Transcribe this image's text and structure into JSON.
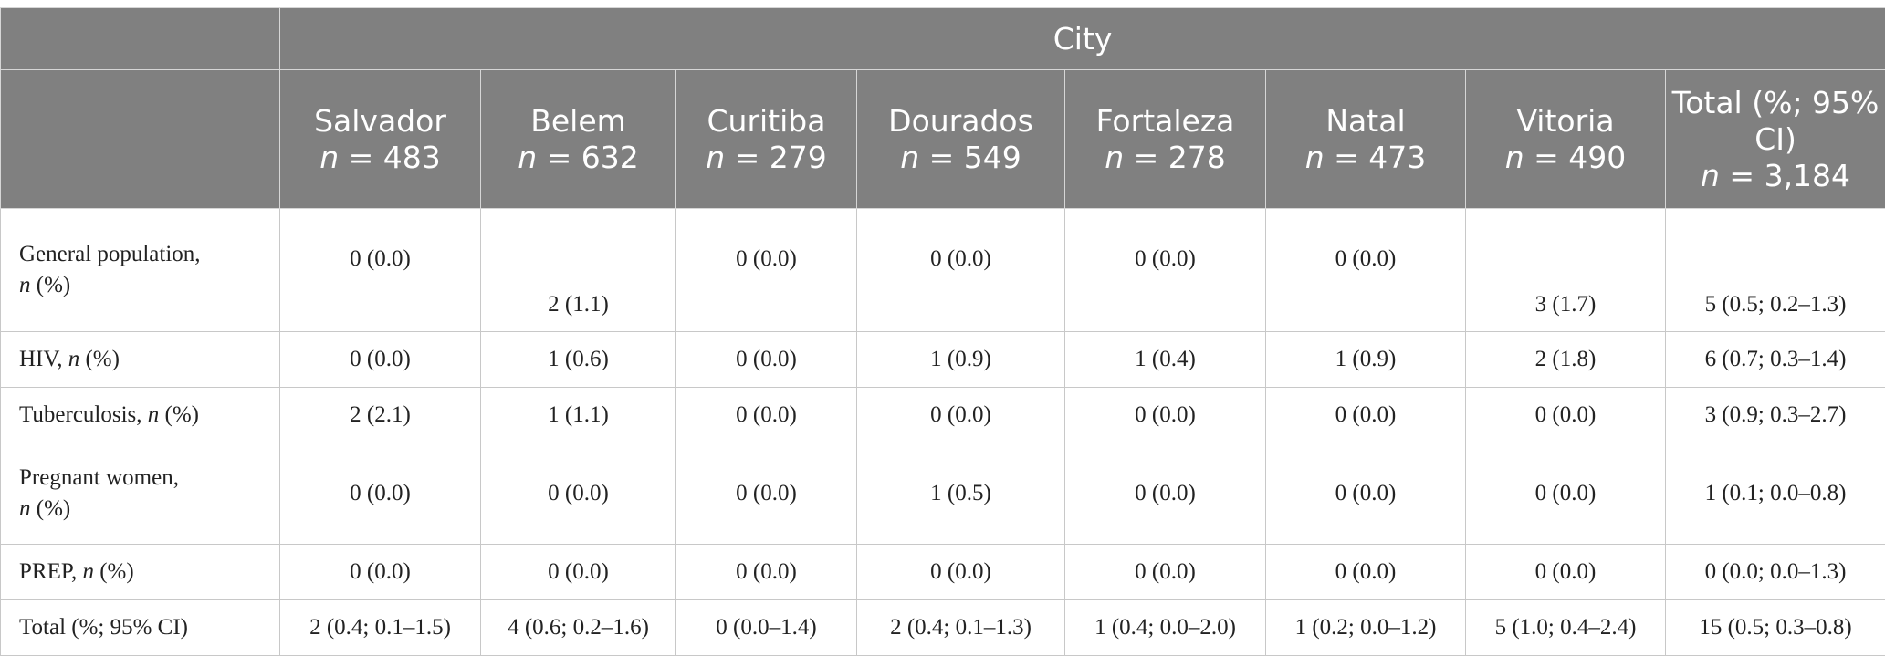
{
  "header": {
    "group_label": "City",
    "n_prefix": "n",
    "columns": [
      {
        "name": "Salvador",
        "n": " = 483"
      },
      {
        "name": "Belem",
        "n": " = 632"
      },
      {
        "name": "Curitiba",
        "n": " = 279"
      },
      {
        "name": "Dourados",
        "n": " = 549"
      },
      {
        "name": "Fortaleza",
        "n": " = 278"
      },
      {
        "name": "Natal",
        "n": " = 473"
      },
      {
        "name": "Vitoria",
        "n": " = 490"
      },
      {
        "name": "Total (%; 95% CI)",
        "n": " = 3,184"
      }
    ]
  },
  "rows": [
    {
      "label_a": "General population,",
      "label_b": "n",
      "label_c": " (%)",
      "cells": [
        "0 (0.0)",
        "2 (1.1)",
        "0 (0.0)",
        "0 (0.0)",
        "0 (0.0)",
        "0 (0.0)",
        "3 (1.7)",
        "5 (0.5; 0.2–1.3)"
      ]
    },
    {
      "label_a": "HIV, ",
      "label_b": "n",
      "label_c": " (%)",
      "cells": [
        "0 (0.0)",
        "1 (0.6)",
        "0 (0.0)",
        "1 (0.9)",
        "1 (0.4)",
        "1 (0.9)",
        "2 (1.8)",
        "6 (0.7; 0.3–1.4)"
      ]
    },
    {
      "label_a": "Tuberculosis, ",
      "label_b": "n",
      "label_c": " (%)",
      "cells": [
        "2 (2.1)",
        "1 (1.1)",
        "0 (0.0)",
        "0 (0.0)",
        "0 (0.0)",
        "0 (0.0)",
        "0 (0.0)",
        "3 (0.9; 0.3–2.7)"
      ]
    },
    {
      "label_a": "Pregnant women,",
      "label_b": "n",
      "label_c": " (%)",
      "cells": [
        "0 (0.0)",
        "0 (0.0)",
        "0 (0.0)",
        "1 (0.5)",
        "0 (0.0)",
        "0 (0.0)",
        "0 (0.0)",
        "1 (0.1; 0.0–0.8)"
      ]
    },
    {
      "label_a": "PREP, ",
      "label_b": "n",
      "label_c": " (%)",
      "cells": [
        "0 (0.0)",
        "0 (0.0)",
        "0 (0.0)",
        "0 (0.0)",
        "0 (0.0)",
        "0 (0.0)",
        "0 (0.0)",
        "0 (0.0; 0.0–1.3)"
      ]
    },
    {
      "label_a": "Total (%; 95% CI)",
      "cells": [
        "2 (0.4; 0.1–1.5)",
        "4 (0.6; 0.2–1.6)",
        "0 (0.0–1.4)",
        "2 (0.4; 0.1–1.3)",
        "1 (0.4; 0.0–2.0)",
        "1 (0.2; 0.0–1.2)",
        "5 (1.0; 0.4–2.4)",
        "15 (0.5; 0.3–0.8)"
      ]
    }
  ]
}
